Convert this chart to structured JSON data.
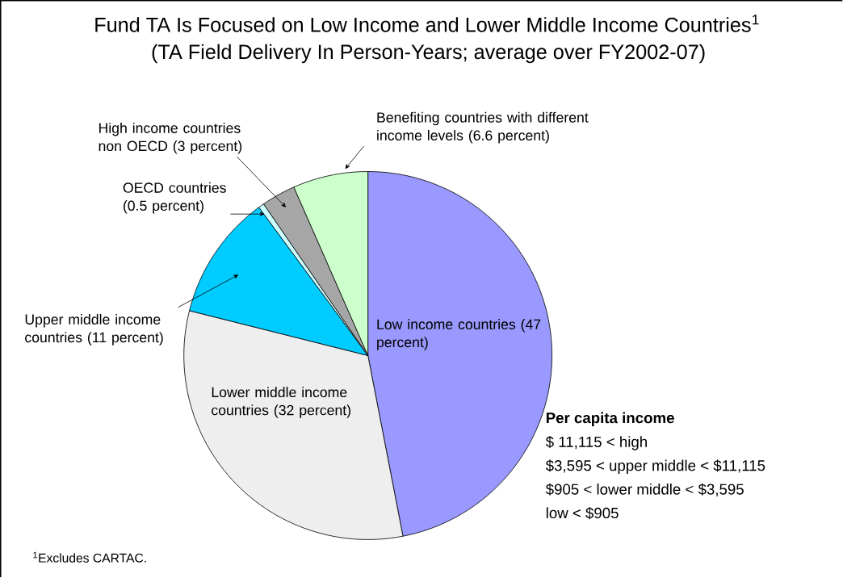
{
  "chart_data": {
    "type": "pie",
    "title": "Fund TA Is Focused on Low Income and Lower Middle Income Countries$^{1}$",
    "subtitle": "(TA Field Delivery In Person-Years; average over FY2002-07)",
    "categories": [
      "Low income countries (47 percent)",
      "Lower middle income countries (32 percent)",
      "Upper middle income countries (11 percent)",
      "OECD countries (0.5 percent)",
      "High income countries non OECD (3 percent)",
      "Benefiting countries with different income levels (6.6 percent)"
    ],
    "values": [
      47,
      32,
      11,
      0.5,
      3,
      6.6
    ],
    "colors": [
      "#9999ff",
      "#eeeeee",
      "#00ccff",
      "#ccffff",
      "#a6a6a6",
      "#ccffcc"
    ],
    "annotations": [
      "Per capita income",
      "$ 11,115 < high",
      "$3,595 < upper middle < $11,115",
      "$905 < lower middle < $3,595",
      "low < $905",
      "$^{1}$Excludes CARTAC."
    ]
  }
}
